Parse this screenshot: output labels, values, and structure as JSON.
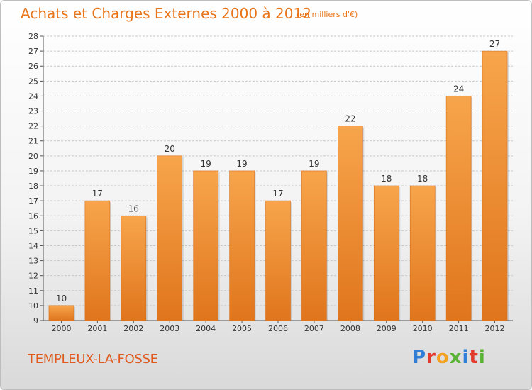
{
  "title": "Achats et Charges Externes 2000 à 2012",
  "subtitle": "(en milliers d'€)",
  "commune": "TEMPLEUX-LA-FOSSE",
  "logo": {
    "letters": [
      "P",
      "r",
      "o",
      "x",
      "i",
      "t",
      "i"
    ],
    "colors": [
      "#2f7fd6",
      "#e23b2e",
      "#f2a21c",
      "#58b233",
      "#2f7fd6",
      "#e23b2e",
      "#58b233"
    ]
  },
  "colors": {
    "bar_top": "#f7a54c",
    "bar_bottom": "#e0751c",
    "grid": "#c9c9c9",
    "axis_text": "#333333",
    "title": "#e8751a",
    "commune": "#e05a1f"
  },
  "chart_data": {
    "type": "bar",
    "title": "Achats et Charges Externes 2000 à 2012",
    "subtitle": "(en milliers d'€)",
    "categories": [
      "2000",
      "2001",
      "2002",
      "2003",
      "2004",
      "2005",
      "2006",
      "2007",
      "2008",
      "2009",
      "2010",
      "2011",
      "2012"
    ],
    "values": [
      10,
      17,
      16,
      20,
      19,
      19,
      17,
      19,
      22,
      18,
      18,
      24,
      27
    ],
    "ylim": [
      9,
      28
    ],
    "yticks": [
      9,
      10,
      11,
      12,
      13,
      14,
      15,
      16,
      17,
      18,
      19,
      20,
      21,
      22,
      23,
      24,
      25,
      26,
      27,
      28
    ],
    "grid": true,
    "data_labels": true
  }
}
